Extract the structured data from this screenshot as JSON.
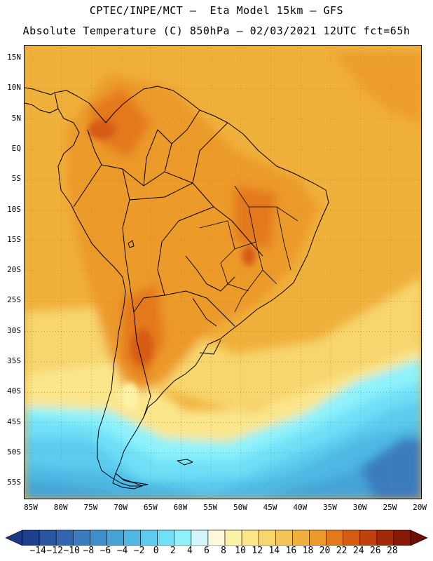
{
  "header": {
    "line1": "CPTEC/INPE/MCT –  Eta Model 15km – GFS",
    "line2": "Absolute Temperature (C) 850hPa – 02/03/2021 12UTC fct=65h"
  },
  "map": {
    "lat_labels": [
      "15N",
      "10N",
      "5N",
      "EQ",
      "5S",
      "10S",
      "15S",
      "20S",
      "25S",
      "30S",
      "35S",
      "40S",
      "45S",
      "50S",
      "55S"
    ],
    "lon_labels": [
      "85W",
      "80W",
      "75W",
      "70W",
      "65W",
      "60W",
      "55W",
      "50W",
      "45W",
      "40W",
      "35W",
      "30W",
      "25W",
      "20W"
    ],
    "lon_range": [
      -85,
      -20
    ],
    "lat_range": [
      16.5,
      -58
    ]
  },
  "colorbar": {
    "labels": [
      "-14",
      "-12",
      "-10",
      "-8",
      "-6",
      "-4",
      "-2",
      "0",
      "2",
      "4",
      "6",
      "8",
      "10",
      "12",
      "14",
      "16",
      "18",
      "20",
      "22",
      "24",
      "26",
      "28"
    ],
    "colors": [
      "#1f3f8f",
      "#2a55a1",
      "#3366b0",
      "#3a7cbd",
      "#3f8fca",
      "#45a3d6",
      "#4db8e3",
      "#5ccbef",
      "#6fe0f7",
      "#8ff2fb",
      "#d3f6fb",
      "#fdf7dc",
      "#fdf3a6",
      "#fbe68c",
      "#f7d66e",
      "#f3c456",
      "#f0b03c",
      "#ec9a2a",
      "#e4781c",
      "#d65c14",
      "#c0400e",
      "#a3280a",
      "#861808"
    ],
    "end_colors": [
      "#1a3a86",
      "#6d0d07"
    ]
  }
}
